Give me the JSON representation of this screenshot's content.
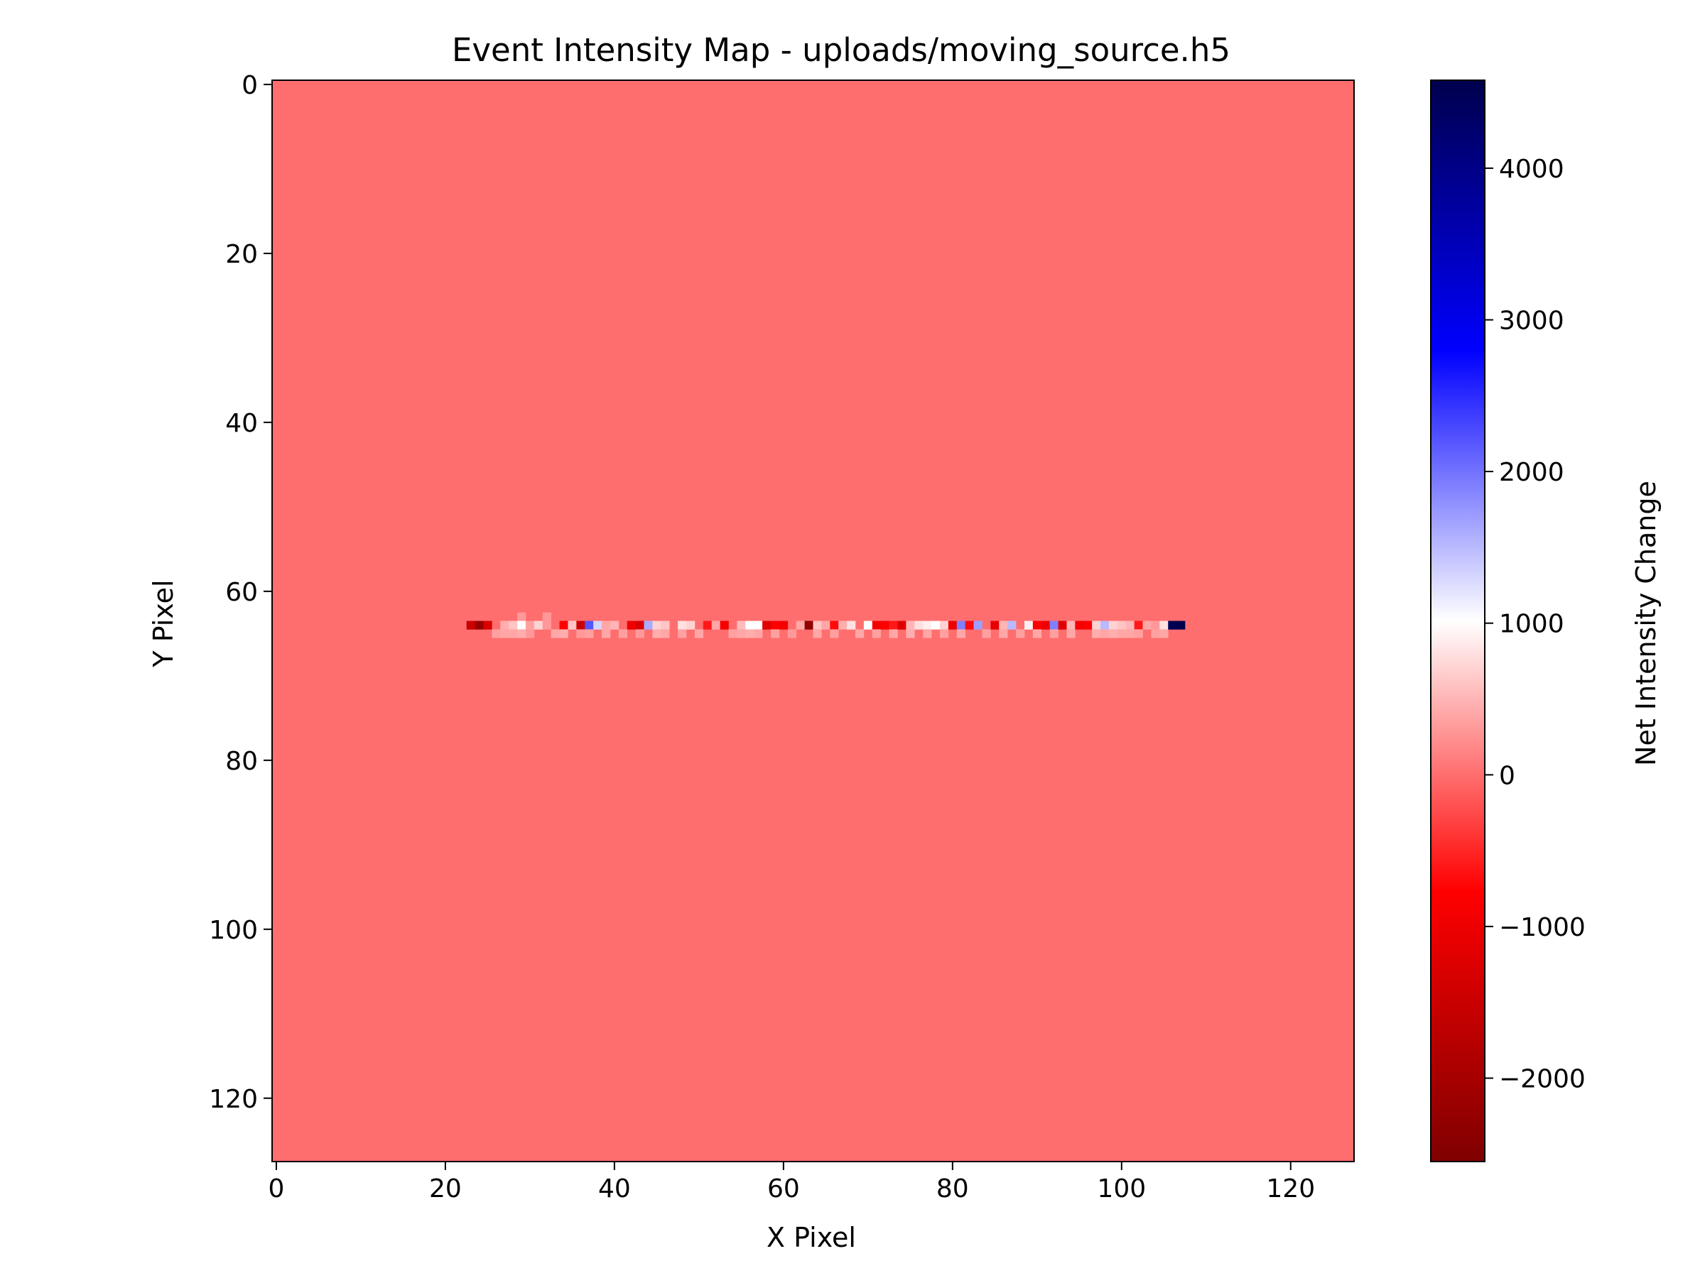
{
  "chart_data": {
    "type": "heatmap",
    "title": "Event Intensity Map - uploads/moving_source.h5",
    "xlabel": "X Pixel",
    "ylabel": "Y Pixel",
    "colorbar_label": "Net Intensity Change",
    "colormap": "seismic",
    "xlim": [
      -0.5,
      127.5
    ],
    "ylim": [
      127.5,
      -0.5
    ],
    "clim": [
      -2550,
      4580
    ],
    "grid": false,
    "background_value": 0,
    "x_ticks": [
      "0",
      "20",
      "40",
      "60",
      "80",
      "100",
      "120"
    ],
    "x_tick_values": [
      0,
      20,
      40,
      60,
      80,
      100,
      120
    ],
    "y_ticks": [
      "0",
      "20",
      "40",
      "60",
      "80",
      "100",
      "120"
    ],
    "y_tick_values": [
      0,
      20,
      40,
      60,
      80,
      100,
      120
    ],
    "colorbar_ticks": [
      "−2000",
      "−1000",
      "0",
      "1000",
      "2000",
      "3000",
      "4000"
    ],
    "colorbar_tick_values": [
      -2000,
      -1000,
      0,
      1000,
      2000,
      3000,
      4000
    ],
    "cells": [
      {
        "x": 23,
        "y": 64,
        "v": -1500
      },
      {
        "x": 24,
        "y": 64,
        "v": -2200
      },
      {
        "x": 25,
        "y": 64,
        "v": -1300
      },
      {
        "x": 26,
        "y": 65,
        "v": 350
      },
      {
        "x": 27,
        "y": 64,
        "v": 450
      },
      {
        "x": 28,
        "y": 64,
        "v": 600
      },
      {
        "x": 27,
        "y": 65,
        "v": 400
      },
      {
        "x": 28,
        "y": 65,
        "v": 400
      },
      {
        "x": 29,
        "y": 63,
        "v": 300
      },
      {
        "x": 29,
        "y": 64,
        "v": 1000
      },
      {
        "x": 29,
        "y": 65,
        "v": 450
      },
      {
        "x": 30,
        "y": 64,
        "v": 350
      },
      {
        "x": 30,
        "y": 65,
        "v": 300
      },
      {
        "x": 31,
        "y": 64,
        "v": 700
      },
      {
        "x": 32,
        "y": 63,
        "v": 300
      },
      {
        "x": 32,
        "y": 64,
        "v": 300
      },
      {
        "x": 33,
        "y": 65,
        "v": 400
      },
      {
        "x": 34,
        "y": 64,
        "v": -800
      },
      {
        "x": 34,
        "y": 65,
        "v": 450
      },
      {
        "x": 35,
        "y": 64,
        "v": 600
      },
      {
        "x": 36,
        "y": 64,
        "v": -1500
      },
      {
        "x": 36,
        "y": 65,
        "v": 300
      },
      {
        "x": 37,
        "y": 64,
        "v": 2200
      },
      {
        "x": 37,
        "y": 65,
        "v": 350
      },
      {
        "x": 38,
        "y": 64,
        "v": 1300
      },
      {
        "x": 39,
        "y": 64,
        "v": 400
      },
      {
        "x": 39,
        "y": 65,
        "v": 400
      },
      {
        "x": 40,
        "y": 64,
        "v": 500
      },
      {
        "x": 41,
        "y": 65,
        "v": 350
      },
      {
        "x": 42,
        "y": 64,
        "v": -1000
      },
      {
        "x": 43,
        "y": 64,
        "v": -1300
      },
      {
        "x": 43,
        "y": 65,
        "v": 300
      },
      {
        "x": 44,
        "y": 64,
        "v": 1600
      },
      {
        "x": 45,
        "y": 64,
        "v": 700
      },
      {
        "x": 45,
        "y": 65,
        "v": 450
      },
      {
        "x": 46,
        "y": 64,
        "v": 600
      },
      {
        "x": 46,
        "y": 65,
        "v": 400
      },
      {
        "x": 48,
        "y": 64,
        "v": 800
      },
      {
        "x": 48,
        "y": 65,
        "v": 350
      },
      {
        "x": 49,
        "y": 64,
        "v": 700
      },
      {
        "x": 50,
        "y": 65,
        "v": 400
      },
      {
        "x": 51,
        "y": 64,
        "v": -600
      },
      {
        "x": 52,
        "y": 64,
        "v": 400
      },
      {
        "x": 53,
        "y": 64,
        "v": -900
      },
      {
        "x": 54,
        "y": 65,
        "v": 350
      },
      {
        "x": 55,
        "y": 64,
        "v": 550
      },
      {
        "x": 55,
        "y": 65,
        "v": 400
      },
      {
        "x": 56,
        "y": 64,
        "v": 1000
      },
      {
        "x": 56,
        "y": 65,
        "v": 450
      },
      {
        "x": 57,
        "y": 64,
        "v": 1000
      },
      {
        "x": 57,
        "y": 65,
        "v": 400
      },
      {
        "x": 58,
        "y": 64,
        "v": -1200
      },
      {
        "x": 59,
        "y": 64,
        "v": -800
      },
      {
        "x": 59,
        "y": 65,
        "v": 350
      },
      {
        "x": 60,
        "y": 64,
        "v": -900
      },
      {
        "x": 61,
        "y": 65,
        "v": 300
      },
      {
        "x": 62,
        "y": 64,
        "v": 400
      },
      {
        "x": 63,
        "y": 64,
        "v": -2300
      },
      {
        "x": 64,
        "y": 64,
        "v": 600
      },
      {
        "x": 64,
        "y": 65,
        "v": 400
      },
      {
        "x": 65,
        "y": 64,
        "v": 400
      },
      {
        "x": 66,
        "y": 64,
        "v": -700
      },
      {
        "x": 66,
        "y": 65,
        "v": 350
      },
      {
        "x": 67,
        "y": 64,
        "v": 450
      },
      {
        "x": 68,
        "y": 64,
        "v": 800
      },
      {
        "x": 69,
        "y": 65,
        "v": 400
      },
      {
        "x": 70,
        "y": 64,
        "v": 1000
      },
      {
        "x": 71,
        "y": 64,
        "v": -900
      },
      {
        "x": 71,
        "y": 65,
        "v": 350
      },
      {
        "x": 72,
        "y": 64,
        "v": -800
      },
      {
        "x": 73,
        "y": 64,
        "v": -600
      },
      {
        "x": 73,
        "y": 65,
        "v": 400
      },
      {
        "x": 74,
        "y": 64,
        "v": -1200
      },
      {
        "x": 75,
        "y": 64,
        "v": 500
      },
      {
        "x": 75,
        "y": 65,
        "v": 450
      },
      {
        "x": 76,
        "y": 64,
        "v": 800
      },
      {
        "x": 77,
        "y": 64,
        "v": 900
      },
      {
        "x": 77,
        "y": 65,
        "v": 400
      },
      {
        "x": 78,
        "y": 64,
        "v": 1000
      },
      {
        "x": 79,
        "y": 64,
        "v": 700
      },
      {
        "x": 79,
        "y": 65,
        "v": 350
      },
      {
        "x": 80,
        "y": 64,
        "v": -1000
      },
      {
        "x": 81,
        "y": 64,
        "v": 1900
      },
      {
        "x": 81,
        "y": 65,
        "v": 400
      },
      {
        "x": 82,
        "y": 64,
        "v": -700
      },
      {
        "x": 83,
        "y": 64,
        "v": 1700
      },
      {
        "x": 84,
        "y": 65,
        "v": 350
      },
      {
        "x": 85,
        "y": 64,
        "v": -1100
      },
      {
        "x": 86,
        "y": 64,
        "v": 500
      },
      {
        "x": 86,
        "y": 65,
        "v": 400
      },
      {
        "x": 87,
        "y": 64,
        "v": 1500
      },
      {
        "x": 88,
        "y": 65,
        "v": 350
      },
      {
        "x": 89,
        "y": 64,
        "v": 900
      },
      {
        "x": 90,
        "y": 64,
        "v": -800
      },
      {
        "x": 90,
        "y": 65,
        "v": 400
      },
      {
        "x": 91,
        "y": 64,
        "v": -1000
      },
      {
        "x": 92,
        "y": 64,
        "v": 1900
      },
      {
        "x": 92,
        "y": 65,
        "v": 350
      },
      {
        "x": 93,
        "y": 64,
        "v": -1200
      },
      {
        "x": 94,
        "y": 64,
        "v": 500
      },
      {
        "x": 94,
        "y": 65,
        "v": 400
      },
      {
        "x": 95,
        "y": 64,
        "v": -900
      },
      {
        "x": 96,
        "y": 64,
        "v": -800
      },
      {
        "x": 97,
        "y": 64,
        "v": 700
      },
      {
        "x": 97,
        "y": 65,
        "v": 450
      },
      {
        "x": 98,
        "y": 64,
        "v": 1500
      },
      {
        "x": 98,
        "y": 65,
        "v": 400
      },
      {
        "x": 99,
        "y": 64,
        "v": 700
      },
      {
        "x": 99,
        "y": 65,
        "v": 450
      },
      {
        "x": 100,
        "y": 64,
        "v": 600
      },
      {
        "x": 100,
        "y": 65,
        "v": 400
      },
      {
        "x": 101,
        "y": 64,
        "v": 500
      },
      {
        "x": 101,
        "y": 65,
        "v": 400
      },
      {
        "x": 102,
        "y": 64,
        "v": -600
      },
      {
        "x": 102,
        "y": 65,
        "v": 350
      },
      {
        "x": 103,
        "y": 64,
        "v": 400
      },
      {
        "x": 104,
        "y": 64,
        "v": 300
      },
      {
        "x": 104,
        "y": 65,
        "v": 350
      },
      {
        "x": 105,
        "y": 64,
        "v": 800
      },
      {
        "x": 105,
        "y": 65,
        "v": 400
      },
      {
        "x": 106,
        "y": 64,
        "v": 4500
      },
      {
        "x": 107,
        "y": 64,
        "v": 4580
      }
    ]
  }
}
